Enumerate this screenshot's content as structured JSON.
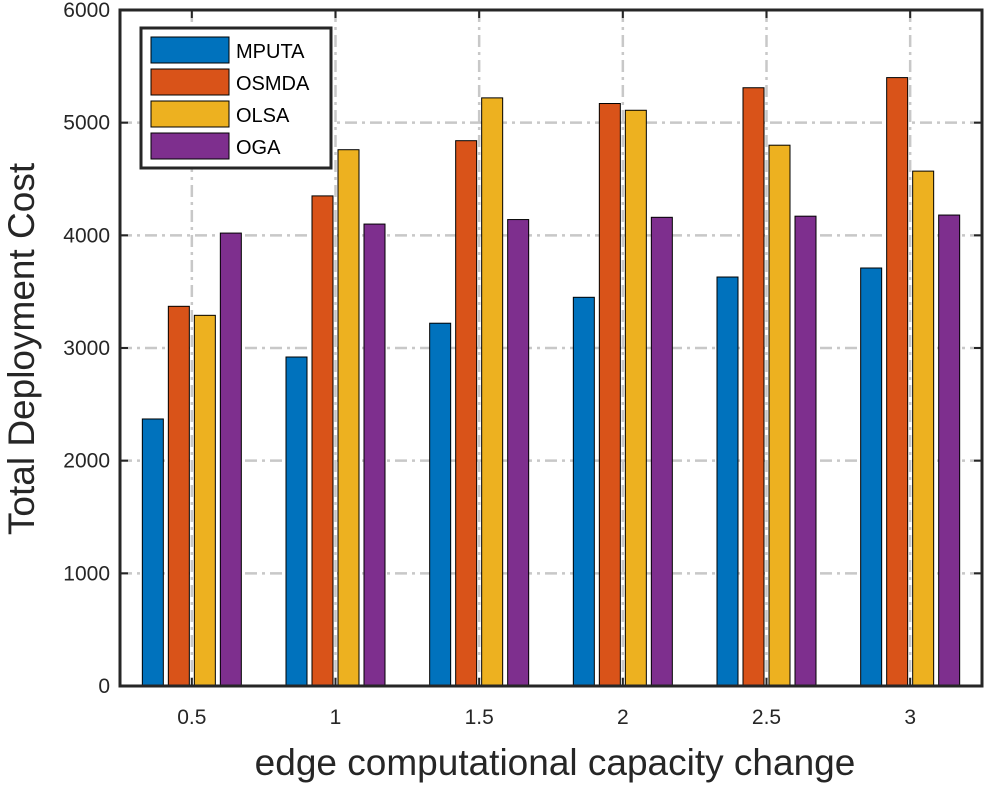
{
  "chart_data": {
    "type": "bar",
    "xlabel": "edge computational capacity change",
    "ylabel": "Total Deployment Cost",
    "categories": [
      "0.5",
      "1",
      "1.5",
      "2",
      "2.5",
      "3"
    ],
    "ylim": [
      0,
      6000
    ],
    "yticks": [
      0,
      1000,
      2000,
      3000,
      4000,
      5000,
      6000
    ],
    "grid": true,
    "legend_position": "top-left",
    "series": [
      {
        "name": "MPUTA",
        "color": "#0072BD",
        "values": [
          2370,
          2920,
          3220,
          3450,
          3630,
          3710
        ]
      },
      {
        "name": "OSMDA",
        "color": "#D95319",
        "values": [
          3370,
          4350,
          4840,
          5170,
          5310,
          5400
        ]
      },
      {
        "name": "OLSA",
        "color": "#EDB120",
        "values": [
          3290,
          4760,
          5220,
          5110,
          4800,
          4570
        ]
      },
      {
        "name": "OGA",
        "color": "#7E2F8E",
        "values": [
          4020,
          4100,
          4140,
          4160,
          4170,
          4180
        ]
      }
    ]
  }
}
